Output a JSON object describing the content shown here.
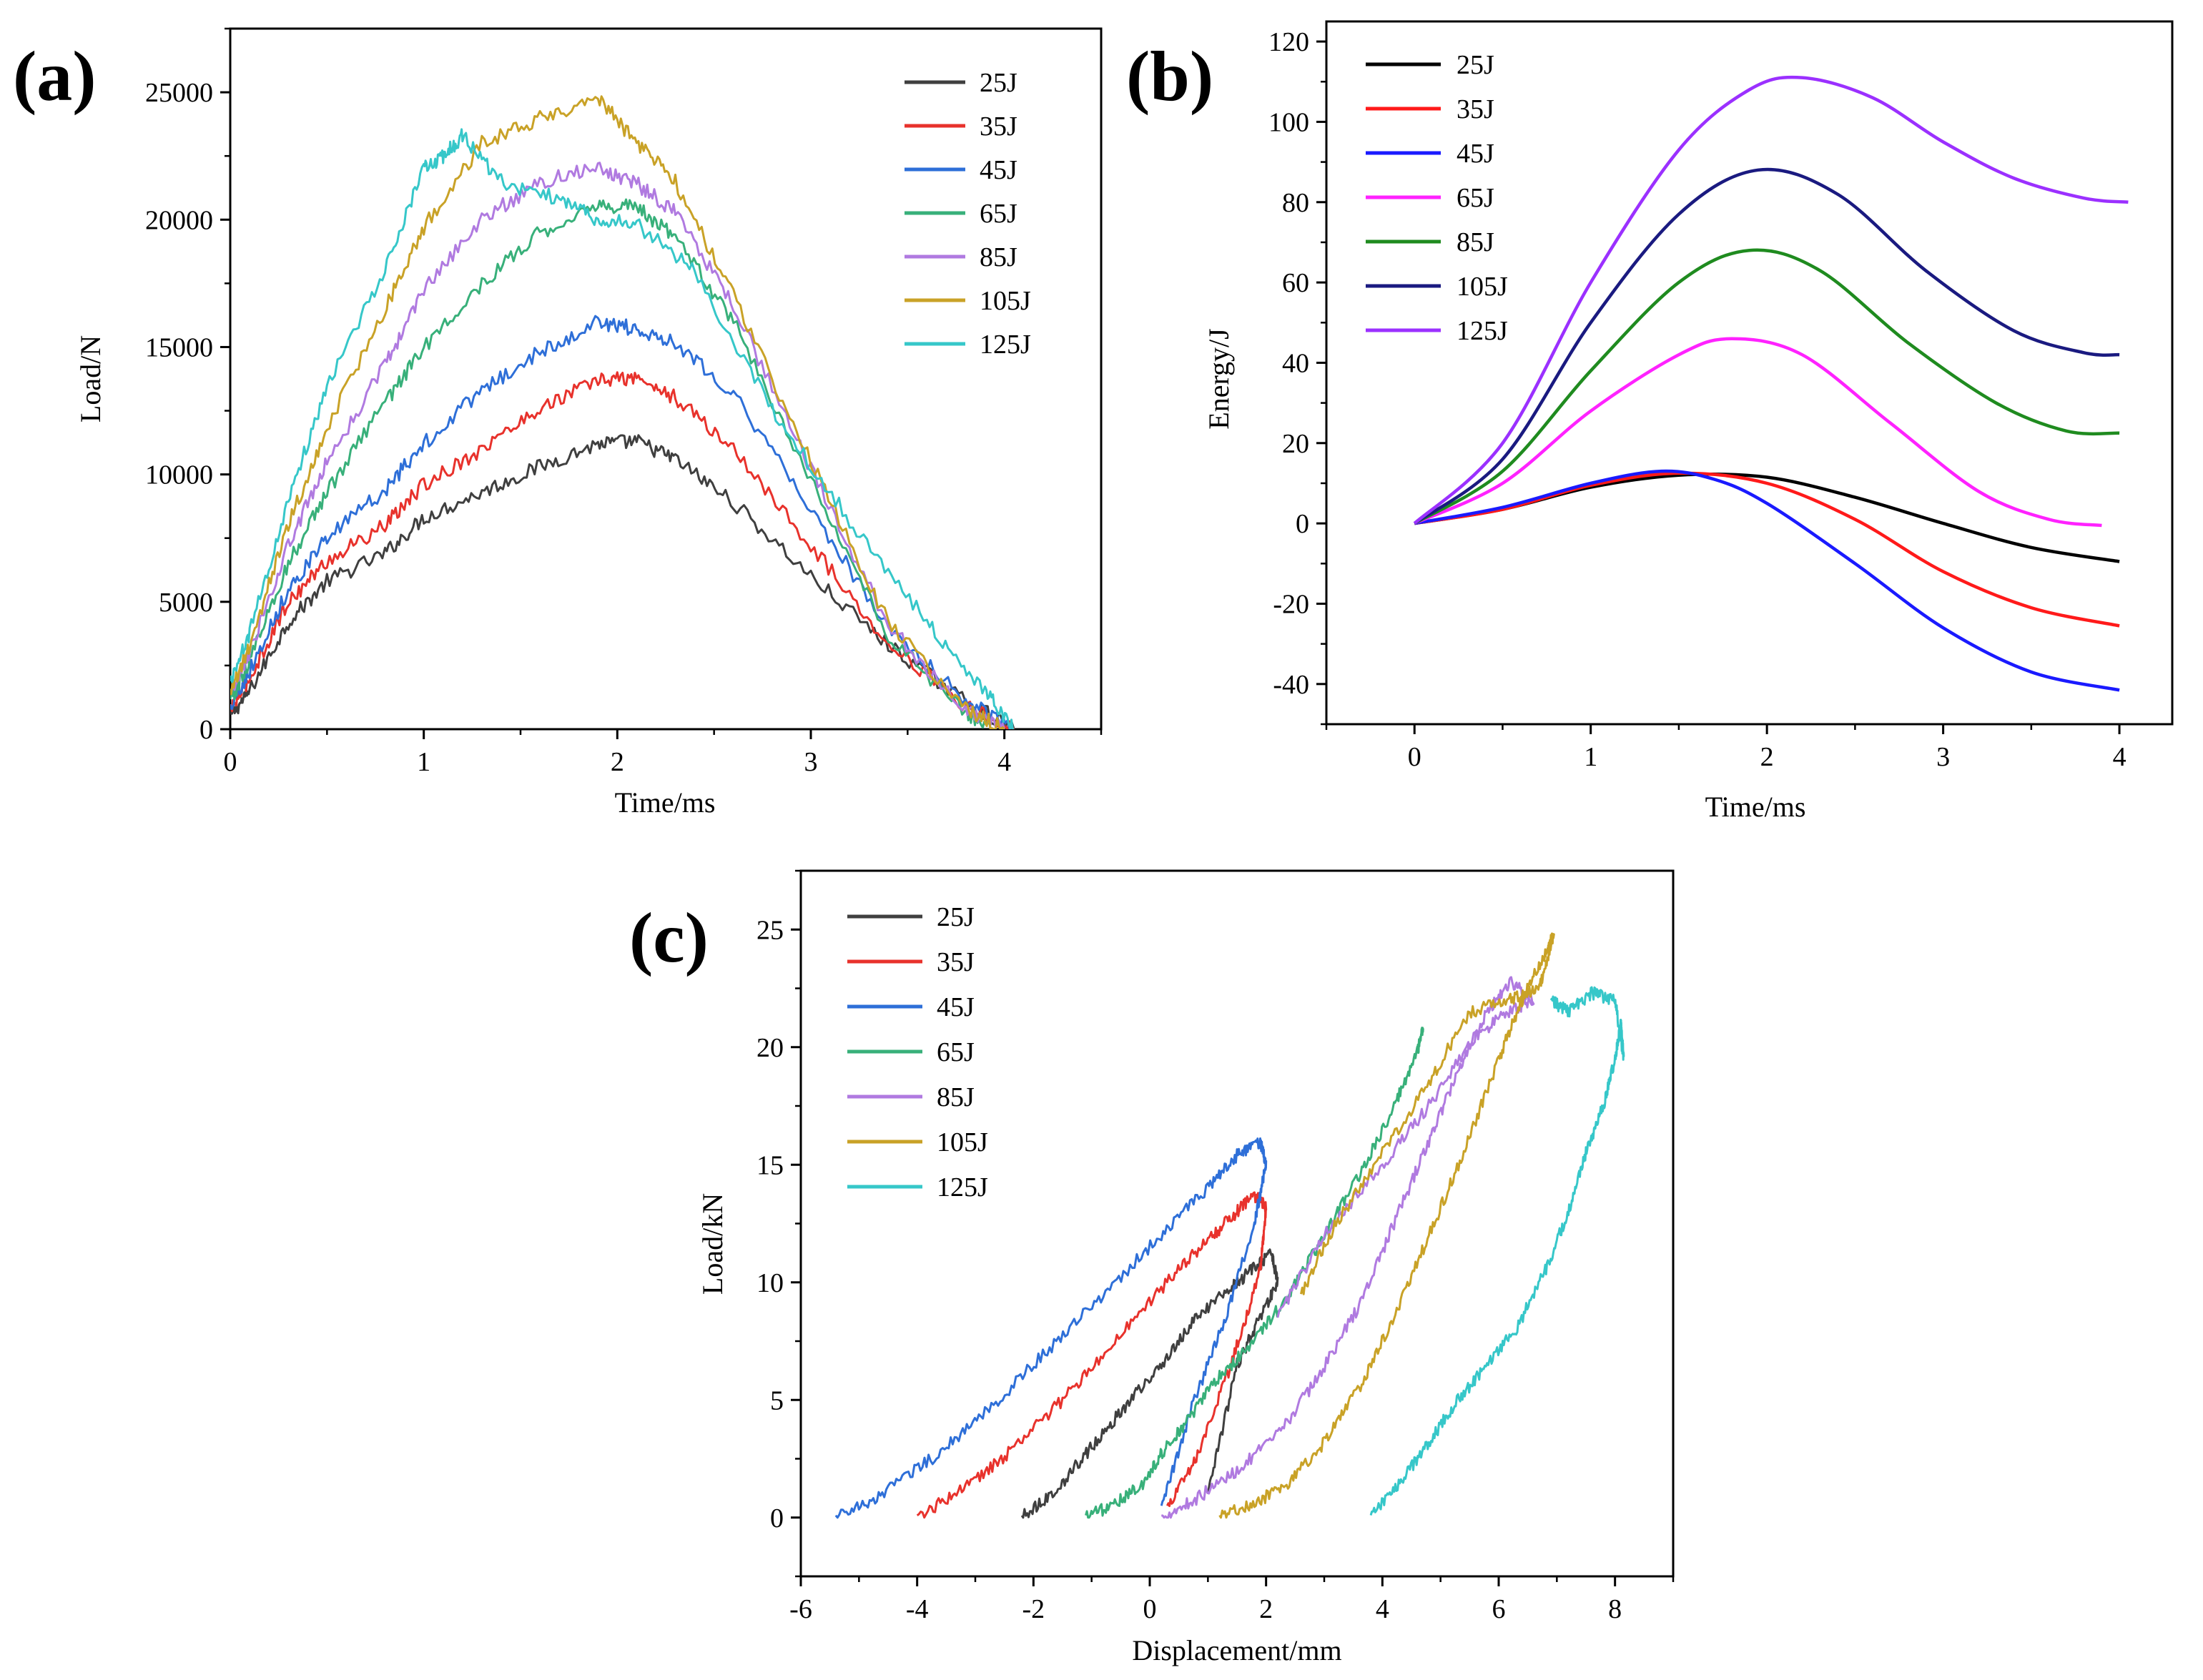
{
  "figure": {
    "panels": [
      "(a)",
      "(b)",
      "(c)"
    ]
  },
  "chart_data": [
    {
      "panel": "(a)",
      "type": "line",
      "title": "",
      "xlabel": "Time/ms",
      "ylabel": "Load/N",
      "xlim": [
        0,
        4.5
      ],
      "ylim": [
        0,
        27500
      ],
      "xticks": [
        "0",
        "1",
        "2",
        "3",
        "4"
      ],
      "yticks": [
        "0",
        "5000",
        "10000",
        "15000",
        "20000",
        "25000"
      ],
      "legend": "top-right",
      "series": [
        {
          "name": "25J",
          "color": "#3f3f3f",
          "x": [
            0,
            0.1,
            0.3,
            0.5,
            0.8,
            1.0,
            1.3,
            1.6,
            1.9,
            2.1,
            2.3,
            2.6,
            3.0,
            3.4,
            3.8,
            4.05
          ],
          "y": [
            500,
            1500,
            4200,
            5800,
            6900,
            8300,
            9300,
            10300,
            11200,
            11300,
            10600,
            8900,
            6000,
            3300,
            1100,
            0
          ]
        },
        {
          "name": "35J",
          "color": "#e8322c",
          "x": [
            0,
            0.1,
            0.3,
            0.5,
            0.8,
            1.0,
            1.3,
            1.6,
            1.9,
            2.1,
            2.3,
            2.6,
            3.0,
            3.4,
            3.8,
            4.05
          ],
          "y": [
            700,
            2000,
            5000,
            6600,
            8000,
            9600,
            11000,
            12600,
            13700,
            13800,
            13000,
            11000,
            7200,
            3400,
            900,
            0
          ]
        },
        {
          "name": "45J",
          "color": "#2e6fd8",
          "x": [
            0,
            0.1,
            0.3,
            0.5,
            0.8,
            1.0,
            1.3,
            1.6,
            1.9,
            2.1,
            2.3,
            2.6,
            3.0,
            3.4,
            3.8,
            4.05
          ],
          "y": [
            900,
            2300,
            5500,
            7500,
            9400,
            11200,
            13300,
            14800,
            16000,
            15700,
            15200,
            13200,
            8600,
            4000,
            1100,
            0
          ]
        },
        {
          "name": "65J",
          "color": "#38b07a",
          "x": [
            0,
            0.1,
            0.3,
            0.5,
            0.8,
            1.0,
            1.3,
            1.6,
            1.9,
            2.1,
            2.3,
            2.6,
            3.0,
            3.4,
            3.8,
            3.95
          ],
          "y": [
            1100,
            2700,
            6500,
            9300,
            12800,
            15000,
            17500,
            19500,
            20600,
            20500,
            19300,
            16000,
            9800,
            3700,
            600,
            0
          ]
        },
        {
          "name": "85J",
          "color": "#b07ae0",
          "x": [
            0,
            0.1,
            0.3,
            0.5,
            0.8,
            1.0,
            1.3,
            1.6,
            1.9,
            2.1,
            2.3,
            2.6,
            3.0,
            3.4,
            3.8,
            4.0
          ],
          "y": [
            1300,
            3000,
            7200,
            10500,
            14300,
            17200,
            20000,
            21500,
            22000,
            21400,
            20300,
            16600,
            10200,
            4100,
            700,
            0
          ]
        },
        {
          "name": "105J",
          "color": "#c9a227",
          "x": [
            0,
            0.1,
            0.3,
            0.5,
            0.8,
            1.0,
            1.3,
            1.6,
            1.9,
            2.1,
            2.3,
            2.6,
            3.0,
            3.4,
            3.8,
            4.0
          ],
          "y": [
            1500,
            3300,
            8000,
            11800,
            16500,
            19700,
            23000,
            24000,
            24800,
            23000,
            21500,
            17000,
            10500,
            4200,
            800,
            0
          ]
        },
        {
          "name": "125J",
          "color": "#36c7c9",
          "x": [
            0,
            0.1,
            0.3,
            0.5,
            0.8,
            1.0,
            1.1,
            1.2,
            1.4,
            1.7,
            1.9,
            2.1,
            2.4,
            2.8,
            3.2,
            3.6,
            3.9,
            4.05
          ],
          "y": [
            1800,
            3800,
            9000,
            13500,
            18000,
            22000,
            22500,
            23300,
            21500,
            20800,
            20000,
            19800,
            18000,
            12500,
            8200,
            4200,
            1500,
            0
          ]
        }
      ]
    },
    {
      "panel": "(b)",
      "type": "line",
      "title": "",
      "xlabel": "Time/ms",
      "ylabel": "Energy/J",
      "xlim": [
        -0.5,
        4.3
      ],
      "ylim": [
        -50,
        125
      ],
      "xticks": [
        "0",
        "1",
        "2",
        "3",
        "4"
      ],
      "yticks": [
        "-40",
        "-20",
        "0",
        "20",
        "40",
        "60",
        "80",
        "100",
        "120"
      ],
      "legend": "top-left",
      "series": [
        {
          "name": "25J",
          "color": "#000000",
          "x": [
            0,
            0.5,
            1.0,
            1.5,
            2.0,
            2.5,
            3.0,
            3.5,
            4.0
          ],
          "y": [
            0,
            3.5,
            9,
            12,
            11.5,
            6.5,
            0,
            -6,
            -9.5
          ]
        },
        {
          "name": "35J",
          "color": "#ff1a1a",
          "x": [
            0,
            0.5,
            1.0,
            1.5,
            2.0,
            2.5,
            3.0,
            3.5,
            4.0
          ],
          "y": [
            0,
            3.5,
            9.5,
            12.5,
            10,
            1,
            -12,
            -21,
            -25.5
          ]
        },
        {
          "name": "45J",
          "color": "#1a1aff",
          "x": [
            0,
            0.5,
            1.0,
            1.4,
            1.7,
            2.0,
            2.5,
            3.0,
            3.5,
            4.0
          ],
          "y": [
            0,
            4,
            10,
            13,
            11,
            5,
            -10,
            -26,
            -37,
            -41.5
          ]
        },
        {
          "name": "65J",
          "color": "#ff22ff",
          "x": [
            0,
            0.5,
            1.0,
            1.5,
            1.8,
            2.2,
            2.7,
            3.2,
            3.6,
            3.9
          ],
          "y": [
            0,
            10,
            28,
            42,
            46,
            42,
            25,
            8,
            1,
            -0.5
          ]
        },
        {
          "name": "85J",
          "color": "#1f8b1f",
          "x": [
            0,
            0.5,
            1.0,
            1.5,
            1.9,
            2.3,
            2.8,
            3.3,
            3.7,
            4.0
          ],
          "y": [
            0,
            13,
            38,
            60,
            68,
            63,
            45,
            30,
            23,
            22.5
          ]
        },
        {
          "name": "105J",
          "color": "#1a1a80",
          "x": [
            0,
            0.5,
            1.0,
            1.5,
            1.95,
            2.4,
            2.9,
            3.4,
            3.8,
            4.0
          ],
          "y": [
            0,
            16,
            50,
            77,
            88,
            82,
            63,
            48,
            42.5,
            42
          ]
        },
        {
          "name": "125J",
          "color": "#9b30ff",
          "x": [
            0,
            0.5,
            1.0,
            1.5,
            1.9,
            2.2,
            2.6,
            3.0,
            3.4,
            3.8,
            4.05
          ],
          "y": [
            0,
            20,
            60,
            93,
            108,
            111,
            106,
            95,
            86,
            81,
            80
          ]
        }
      ]
    },
    {
      "panel": "(c)",
      "type": "line",
      "title": "",
      "xlabel": "Displacement/mm",
      "ylabel": "Load/kN",
      "xlim": [
        -6,
        9
      ],
      "ylim": [
        -2.5,
        27.5
      ],
      "xticks": [
        "-6",
        "-4",
        "-2",
        "0",
        "2",
        "4",
        "6",
        "8"
      ],
      "yticks": [
        "0",
        "5",
        "10",
        "15",
        "20",
        "25"
      ],
      "legend": "top-left",
      "series": [
        {
          "name": "25J",
          "color": "#3f3f3f",
          "x": [
            -2.2,
            -1.6,
            -1.0,
            -0.4,
            0.2,
            0.8,
            1.4,
            1.8,
            2.1,
            2.2,
            1.9,
            1.5,
            1.0
          ],
          "y": [
            0,
            1.2,
            3.0,
            4.8,
            6.5,
            8.5,
            9.8,
            10.6,
            11.2,
            10.0,
            8.5,
            6.5,
            1.0
          ]
        },
        {
          "name": "35J",
          "color": "#e8322c",
          "x": [
            -4.0,
            -3.2,
            -2.4,
            -1.5,
            -0.6,
            0.3,
            1.0,
            1.5,
            1.8,
            2.0,
            1.9,
            1.4,
            0.8,
            0.3
          ],
          "y": [
            0,
            1.2,
            2.8,
            5.0,
            7.5,
            10.0,
            11.8,
            13.0,
            13.7,
            13.2,
            10.5,
            6.5,
            2.5,
            0.5
          ]
        },
        {
          "name": "45J",
          "color": "#2e6fd8",
          "x": [
            -5.4,
            -4.6,
            -3.7,
            -2.8,
            -1.8,
            -0.8,
            0.2,
            1.0,
            1.5,
            1.9,
            2.0,
            1.8,
            1.3,
            0.7,
            0.2
          ],
          "y": [
            0,
            1.0,
            2.6,
            4.5,
            7.0,
            9.5,
            12.0,
            14.0,
            15.4,
            16.0,
            15.0,
            12.5,
            8.5,
            4.5,
            0.5
          ]
        },
        {
          "name": "65J",
          "color": "#38b07a",
          "x": [
            -1.1,
            -0.6,
            -0.1,
            0.2,
            0.6,
            1.2,
            1.8,
            2.4,
            3.0,
            3.6,
            4.2,
            4.6,
            4.7
          ],
          "y": [
            0,
            0.6,
            1.5,
            2.7,
            4.0,
            6.0,
            7.5,
            9.5,
            12.0,
            14.5,
            17.5,
            19.8,
            20.8
          ]
        },
        {
          "name": "85J",
          "color": "#b07ae0",
          "x": [
            0.2,
            0.8,
            1.5,
            2.2,
            2.9,
            3.6,
            4.2,
            4.8,
            5.3,
            5.8,
            6.2,
            6.6,
            6.2,
            5.6,
            4.8,
            4.0,
            3.0,
            2.2
          ],
          "y": [
            0,
            0.8,
            2.0,
            3.5,
            6.0,
            9.0,
            12.5,
            16.0,
            19.0,
            21.5,
            22.8,
            22.0,
            21.5,
            20.5,
            17.5,
            15.0,
            12.0,
            8.5
          ]
        },
        {
          "name": "105J",
          "color": "#c9a227",
          "x": [
            1.2,
            1.8,
            2.4,
            3.0,
            3.6,
            4.2,
            4.8,
            5.4,
            6.0,
            6.4,
            6.8,
            6.95,
            6.7,
            6.2,
            5.5,
            4.8,
            4.0,
            3.2,
            2.6
          ],
          "y": [
            0,
            0.6,
            1.5,
            3.2,
            5.5,
            8.5,
            12.0,
            15.5,
            19.5,
            22.0,
            24.0,
            24.8,
            22.5,
            22.0,
            21.5,
            18.5,
            15.5,
            12.5,
            9.5
          ]
        },
        {
          "name": "125J",
          "color": "#36c7c9",
          "x": [
            3.8,
            4.3,
            4.8,
            5.3,
            5.8,
            6.3,
            6.8,
            7.2,
            7.5,
            7.8,
            8.0,
            8.1,
            8.15,
            8.0,
            7.6,
            7.2,
            6.9
          ],
          "y": [
            0,
            1.5,
            3.2,
            5.0,
            6.5,
            8.0,
            10.5,
            13.0,
            15.5,
            17.5,
            19.5,
            21.0,
            19.5,
            22.0,
            22.3,
            21.5,
            22.0
          ]
        }
      ]
    }
  ]
}
